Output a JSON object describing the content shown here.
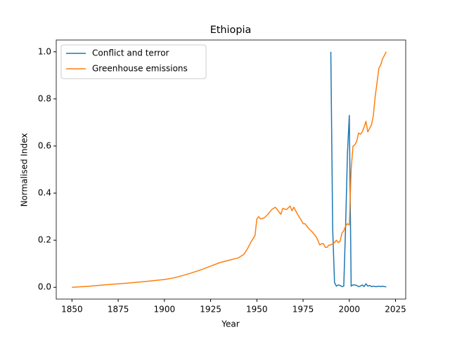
{
  "chart_data": {
    "type": "line",
    "title": "Ethiopia",
    "xlabel": "Year",
    "ylabel": "Normalised Index",
    "xlim": [
      1841.5,
      2030.5
    ],
    "ylim": [
      -0.05,
      1.05
    ],
    "xticks": [
      1850,
      1875,
      1900,
      1925,
      1950,
      1975,
      2000,
      2025
    ],
    "yticks": [
      {
        "value": 0,
        "label": "0.0"
      },
      {
        "value": 0.2,
        "label": "0.2"
      },
      {
        "value": 0.4,
        "label": "0.4"
      },
      {
        "value": 0.6,
        "label": "0.6"
      },
      {
        "value": 0.8,
        "label": "0.8"
      },
      {
        "value": 1,
        "label": "1.0"
      }
    ],
    "legend": "upper left",
    "series": [
      {
        "name": "Conflict and terror",
        "color": "#1f77b4",
        "x": [
          1990,
          1991,
          1992,
          1993,
          1994,
          1995,
          1996,
          1997,
          1998,
          1999,
          2000,
          2001,
          2002,
          2003,
          2004,
          2005,
          2006,
          2007,
          2008,
          2009,
          2010,
          2011,
          2012,
          2013,
          2014,
          2015,
          2016,
          2017,
          2018,
          2019,
          2020
        ],
        "values": [
          1.0,
          0.25,
          0.02,
          0.005,
          0.01,
          0.008,
          0.003,
          0.005,
          0.26,
          0.57,
          0.73,
          0.005,
          0.01,
          0.01,
          0.008,
          0.003,
          0.005,
          0.01,
          0.003,
          0.015,
          0.005,
          0.008,
          0.003,
          0.005,
          0.003,
          0.003,
          0.005,
          0.003,
          0.005,
          0.003,
          0.002
        ]
      },
      {
        "name": "Greenhouse emissions",
        "color": "#ff7f0e",
        "x": [
          1850,
          1860,
          1870,
          1880,
          1890,
          1900,
          1905,
          1910,
          1915,
          1920,
          1925,
          1930,
          1935,
          1940,
          1943,
          1945,
          1947,
          1949,
          1950,
          1951,
          1952,
          1954,
          1956,
          1958,
          1960,
          1962,
          1963,
          1964,
          1966,
          1968,
          1969,
          1970,
          1972,
          1974,
          1975,
          1976,
          1978,
          1980,
          1982,
          1983,
          1984,
          1985,
          1986,
          1987,
          1988,
          1989,
          1990,
          1992,
          1993,
          1994,
          1995,
          1996,
          1997,
          1998,
          1999,
          2000,
          2001,
          2002,
          2003,
          2004,
          2005,
          2006,
          2007,
          2008,
          2009,
          2010,
          2011,
          2012,
          2013,
          2014,
          2015,
          2016,
          2017,
          2018,
          2019,
          2020
        ],
        "values": [
          0,
          0.005,
          0.012,
          0.018,
          0.025,
          0.033,
          0.04,
          0.05,
          0.062,
          0.075,
          0.09,
          0.105,
          0.115,
          0.125,
          0.14,
          0.165,
          0.195,
          0.22,
          0.29,
          0.3,
          0.29,
          0.295,
          0.31,
          0.33,
          0.34,
          0.32,
          0.31,
          0.335,
          0.33,
          0.345,
          0.325,
          0.34,
          0.31,
          0.285,
          0.27,
          0.27,
          0.25,
          0.235,
          0.215,
          0.2,
          0.18,
          0.185,
          0.185,
          0.17,
          0.17,
          0.18,
          0.18,
          0.19,
          0.2,
          0.19,
          0.195,
          0.23,
          0.24,
          0.26,
          0.27,
          0.265,
          0.5,
          0.6,
          0.605,
          0.62,
          0.655,
          0.65,
          0.66,
          0.68,
          0.705,
          0.66,
          0.675,
          0.69,
          0.73,
          0.81,
          0.87,
          0.93,
          0.945,
          0.97,
          0.985,
          1.0
        ]
      }
    ]
  }
}
